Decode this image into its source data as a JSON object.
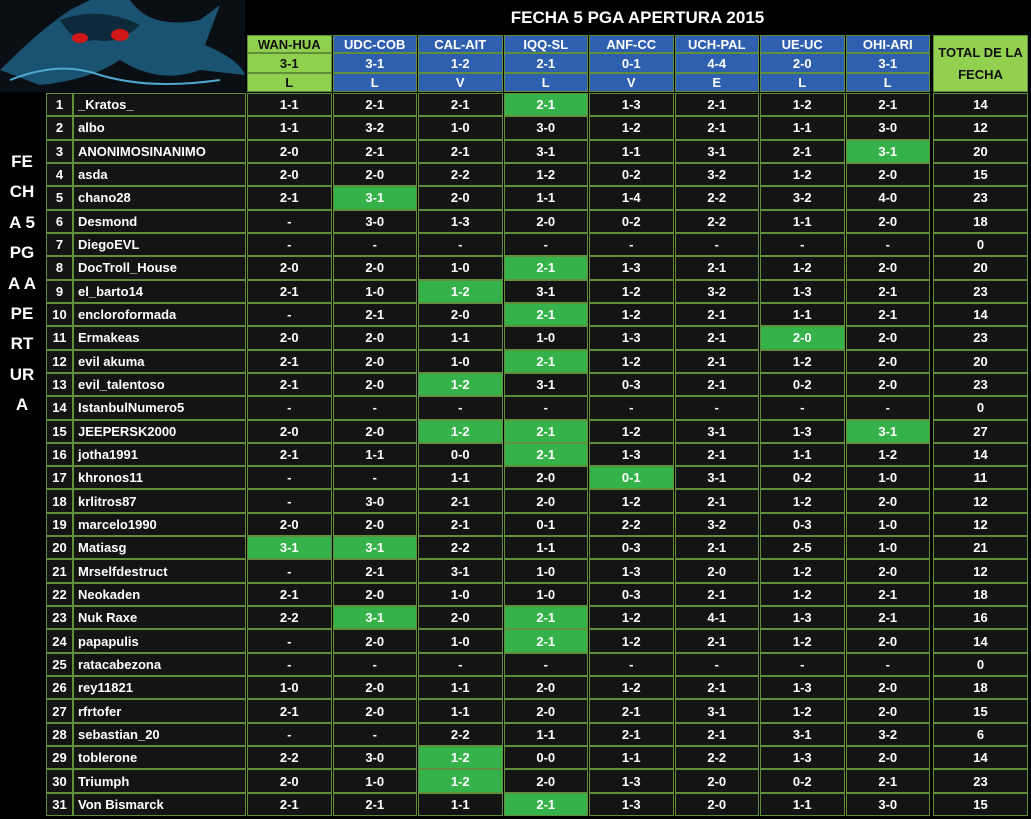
{
  "header": {
    "title": "FECHA 5 PGA APERTURA 2015",
    "side_label": "FECHA 5 PGA APERTURA",
    "total_label": "TOTAL DE LA FECHA"
  },
  "matches": [
    {
      "name": "WAN-HUA",
      "result": "3-1",
      "outcome": "L"
    },
    {
      "name": "UDC-COB",
      "result": "3-1",
      "outcome": "L"
    },
    {
      "name": "CAL-AIT",
      "result": "1-2",
      "outcome": "V"
    },
    {
      "name": "IQQ-SL",
      "result": "2-1",
      "outcome": "L"
    },
    {
      "name": "ANF-CC",
      "result": "0-1",
      "outcome": "V"
    },
    {
      "name": "UCH-PAL",
      "result": "4-4",
      "outcome": "E"
    },
    {
      "name": "UE-UC",
      "result": "2-0",
      "outcome": "L"
    },
    {
      "name": "OHI-ARI",
      "result": "3-1",
      "outcome": "L"
    }
  ],
  "rows": [
    {
      "rank": 1,
      "name": "_Kratos_",
      "picks": [
        "1-1",
        "2-1",
        "2-1",
        "2-1",
        "1-3",
        "2-1",
        "1-2",
        "2-1"
      ],
      "total": 14
    },
    {
      "rank": 2,
      "name": "albo",
      "picks": [
        "1-1",
        "3-2",
        "1-0",
        "3-0",
        "1-2",
        "2-1",
        "1-1",
        "3-0"
      ],
      "total": 12
    },
    {
      "rank": 3,
      "name": "ANONIMOSINANIMO",
      "picks": [
        "2-0",
        "2-1",
        "2-1",
        "3-1",
        "1-1",
        "3-1",
        "2-1",
        "3-1"
      ],
      "total": 20
    },
    {
      "rank": 4,
      "name": "asda",
      "picks": [
        "2-0",
        "2-0",
        "2-2",
        "1-2",
        "0-2",
        "3-2",
        "1-2",
        "2-0"
      ],
      "total": 15
    },
    {
      "rank": 5,
      "name": "chano28",
      "picks": [
        "2-1",
        "3-1",
        "2-0",
        "1-1",
        "1-4",
        "2-2",
        "3-2",
        "4-0"
      ],
      "total": 23
    },
    {
      "rank": 6,
      "name": "Desmond",
      "picks": [
        "-",
        "3-0",
        "1-3",
        "2-0",
        "0-2",
        "2-2",
        "1-1",
        "2-0"
      ],
      "total": 18
    },
    {
      "rank": 7,
      "name": "DiegoEVL",
      "picks": [
        "-",
        "-",
        "-",
        "-",
        "-",
        "-",
        "-",
        "-"
      ],
      "total": 0
    },
    {
      "rank": 8,
      "name": "DocTroll_House",
      "picks": [
        "2-0",
        "2-0",
        "1-0",
        "2-1",
        "1-3",
        "2-1",
        "1-2",
        "2-0"
      ],
      "total": 20
    },
    {
      "rank": 9,
      "name": "el_barto14",
      "picks": [
        "2-1",
        "1-0",
        "1-2",
        "3-1",
        "1-2",
        "3-2",
        "1-3",
        "2-1"
      ],
      "total": 23
    },
    {
      "rank": 10,
      "name": "encloroformada",
      "picks": [
        "-",
        "2-1",
        "2-0",
        "2-1",
        "1-2",
        "2-1",
        "1-1",
        "2-1"
      ],
      "total": 14
    },
    {
      "rank": 11,
      "name": "Ermakeas",
      "picks": [
        "2-0",
        "2-0",
        "1-1",
        "1-0",
        "1-3",
        "2-1",
        "2-0",
        "2-0"
      ],
      "total": 23
    },
    {
      "rank": 12,
      "name": "evil akuma",
      "picks": [
        "2-1",
        "2-0",
        "1-0",
        "2-1",
        "1-2",
        "2-1",
        "1-2",
        "2-0"
      ],
      "total": 20
    },
    {
      "rank": 13,
      "name": "evil_talentoso",
      "picks": [
        "2-1",
        "2-0",
        "1-2",
        "3-1",
        "0-3",
        "2-1",
        "0-2",
        "2-0"
      ],
      "total": 23
    },
    {
      "rank": 14,
      "name": "IstanbulNumero5",
      "picks": [
        "-",
        "-",
        "-",
        "-",
        "-",
        "-",
        "-",
        "-"
      ],
      "total": 0
    },
    {
      "rank": 15,
      "name": "JEEPERSK2000",
      "picks": [
        "2-0",
        "2-0",
        "1-2",
        "2-1",
        "1-2",
        "3-1",
        "1-3",
        "3-1"
      ],
      "total": 27
    },
    {
      "rank": 16,
      "name": "jotha1991",
      "picks": [
        "2-1",
        "1-1",
        "0-0",
        "2-1",
        "1-3",
        "2-1",
        "1-1",
        "1-2"
      ],
      "total": 14
    },
    {
      "rank": 17,
      "name": "khronos11",
      "picks": [
        "-",
        "-",
        "1-1",
        "2-0",
        "0-1",
        "3-1",
        "0-2",
        "1-0"
      ],
      "total": 11
    },
    {
      "rank": 18,
      "name": "krlitros87",
      "picks": [
        "-",
        "3-0",
        "2-1",
        "2-0",
        "1-2",
        "2-1",
        "1-2",
        "2-0"
      ],
      "total": 12
    },
    {
      "rank": 19,
      "name": "marcelo1990",
      "picks": [
        "2-0",
        "2-0",
        "2-1",
        "0-1",
        "2-2",
        "3-2",
        "0-3",
        "1-0"
      ],
      "total": 12
    },
    {
      "rank": 20,
      "name": "Matiasg",
      "picks": [
        "3-1",
        "3-1",
        "2-2",
        "1-1",
        "0-3",
        "2-1",
        "2-5",
        "1-0"
      ],
      "total": 21
    },
    {
      "rank": 21,
      "name": "Mrselfdestruct",
      "picks": [
        "-",
        "2-1",
        "3-1",
        "1-0",
        "1-3",
        "2-0",
        "1-2",
        "2-0"
      ],
      "total": 12
    },
    {
      "rank": 22,
      "name": "Neokaden",
      "picks": [
        "2-1",
        "2-0",
        "1-0",
        "1-0",
        "0-3",
        "2-1",
        "1-2",
        "2-1"
      ],
      "total": 18
    },
    {
      "rank": 23,
      "name": "Nuk Raxe",
      "picks": [
        "2-2",
        "3-1",
        "2-0",
        "2-1",
        "1-2",
        "4-1",
        "1-3",
        "2-1"
      ],
      "total": 16
    },
    {
      "rank": 24,
      "name": "papapulis",
      "picks": [
        "-",
        "2-0",
        "1-0",
        "2-1",
        "1-2",
        "2-1",
        "1-2",
        "2-0"
      ],
      "total": 14
    },
    {
      "rank": 25,
      "name": "ratacabezona",
      "picks": [
        "-",
        "-",
        "-",
        "-",
        "-",
        "-",
        "-",
        "-"
      ],
      "total": 0
    },
    {
      "rank": 26,
      "name": "rey11821",
      "picks": [
        "1-0",
        "2-0",
        "1-1",
        "2-0",
        "1-2",
        "2-1",
        "1-3",
        "2-0"
      ],
      "total": 18
    },
    {
      "rank": 27,
      "name": "rfrtofer",
      "picks": [
        "2-1",
        "2-0",
        "1-1",
        "2-0",
        "2-1",
        "3-1",
        "1-2",
        "2-0"
      ],
      "total": 15
    },
    {
      "rank": 28,
      "name": "sebastian_20",
      "picks": [
        "-",
        "-",
        "2-2",
        "1-1",
        "2-1",
        "2-1",
        "3-1",
        "3-2"
      ],
      "total": 6
    },
    {
      "rank": 29,
      "name": "toblerone",
      "picks": [
        "2-2",
        "3-0",
        "1-2",
        "0-0",
        "1-1",
        "2-2",
        "1-3",
        "2-0"
      ],
      "total": 14
    },
    {
      "rank": 30,
      "name": "Triumph",
      "picks": [
        "2-0",
        "1-0",
        "1-2",
        "2-0",
        "1-3",
        "2-0",
        "0-2",
        "2-1"
      ],
      "total": 23
    },
    {
      "rank": 31,
      "name": "Von Bismarck",
      "picks": [
        "2-1",
        "2-1",
        "1-1",
        "2-1",
        "1-3",
        "2-0",
        "1-1",
        "3-0"
      ],
      "total": 15
    }
  ]
}
